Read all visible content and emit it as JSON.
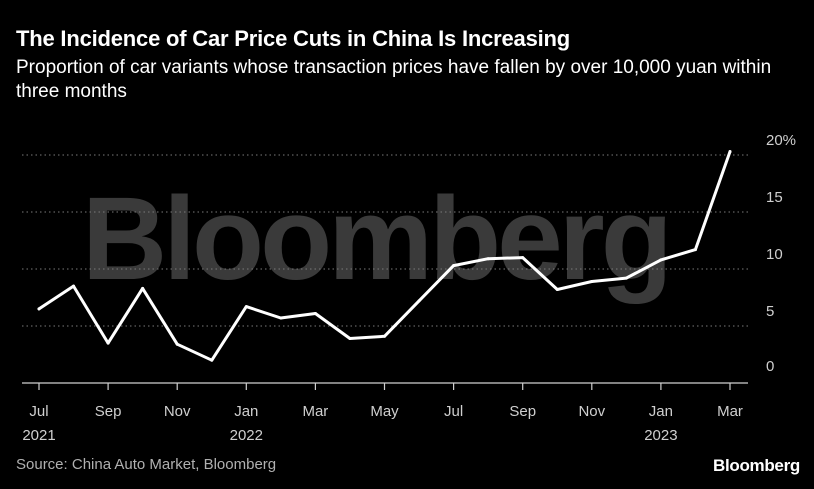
{
  "header": {
    "title": "The Incidence of Car Price Cuts in China Is Increasing",
    "subtitle": "Proportion of car variants whose transaction prices have fallen by over 10,000 yuan within three months"
  },
  "footer": {
    "source": "Source: China Auto Market, Bloomberg",
    "brand": "Bloomberg"
  },
  "watermark": "Bloomberg",
  "colors": {
    "background": "#000000",
    "line": "#ffffff",
    "grid": "#7a7a7a",
    "watermark": "#3a3a3a"
  },
  "chart_data": {
    "type": "line",
    "title": "The Incidence of Car Price Cuts in China Is Increasing",
    "subtitle": "Proportion of car variants whose transaction prices have fallen by over 10,000 yuan within three months",
    "x": [
      "2021-07",
      "2021-08",
      "2021-09",
      "2021-10",
      "2021-11",
      "2021-12",
      "2022-01",
      "2022-02",
      "2022-03",
      "2022-04",
      "2022-05",
      "2022-06",
      "2022-07",
      "2022-08",
      "2022-09",
      "2022-10",
      "2022-11",
      "2022-12",
      "2023-01",
      "2023-02",
      "2023-03"
    ],
    "series": [
      {
        "values": [
          6.5,
          8.5,
          3.5,
          8.3,
          3.4,
          2.0,
          6.7,
          5.7,
          6.1,
          3.9,
          4.1,
          7.2,
          10.3,
          10.9,
          11.0,
          8.2,
          8.9,
          9.2,
          10.8,
          11.7,
          20.3
        ]
      }
    ],
    "ylim": [
      0,
      20
    ],
    "yticks": [
      {
        "value": 0,
        "label": "0"
      },
      {
        "value": 5,
        "label": "5"
      },
      {
        "value": 10,
        "label": "10"
      },
      {
        "value": 15,
        "label": "15"
      },
      {
        "value": 20,
        "label": "20%"
      }
    ],
    "xticks": [
      {
        "value": "2021-07",
        "label": "Jul",
        "year": "2021"
      },
      {
        "value": "2021-09",
        "label": "Sep",
        "year": ""
      },
      {
        "value": "2021-11",
        "label": "Nov",
        "year": ""
      },
      {
        "value": "2022-01",
        "label": "Jan",
        "year": "2022"
      },
      {
        "value": "2022-03",
        "label": "Mar",
        "year": ""
      },
      {
        "value": "2022-05",
        "label": "May",
        "year": ""
      },
      {
        "value": "2022-07",
        "label": "Jul",
        "year": ""
      },
      {
        "value": "2022-09",
        "label": "Sep",
        "year": ""
      },
      {
        "value": "2022-11",
        "label": "Nov",
        "year": ""
      },
      {
        "value": "2023-01",
        "label": "Jan",
        "year": "2023"
      },
      {
        "value": "2023-03",
        "label": "Mar",
        "year": ""
      }
    ],
    "grid": "horizontal dotted",
    "ylabel": "",
    "xlabel": ""
  }
}
